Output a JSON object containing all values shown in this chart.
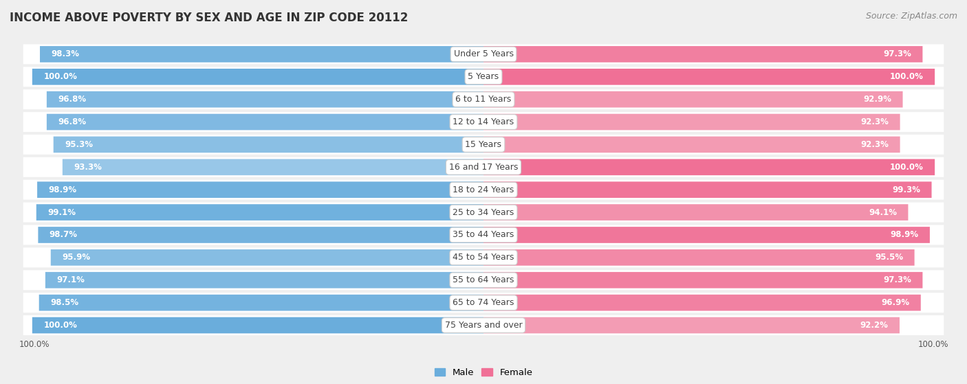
{
  "title": "INCOME ABOVE POVERTY BY SEX AND AGE IN ZIP CODE 20112",
  "source": "Source: ZipAtlas.com",
  "categories": [
    "Under 5 Years",
    "5 Years",
    "6 to 11 Years",
    "12 to 14 Years",
    "15 Years",
    "16 and 17 Years",
    "18 to 24 Years",
    "25 to 34 Years",
    "35 to 44 Years",
    "45 to 54 Years",
    "55 to 64 Years",
    "65 to 74 Years",
    "75 Years and over"
  ],
  "male_values": [
    98.3,
    100.0,
    96.8,
    96.8,
    95.3,
    93.3,
    98.9,
    99.1,
    98.7,
    95.9,
    97.1,
    98.5,
    100.0
  ],
  "female_values": [
    97.3,
    100.0,
    92.9,
    92.3,
    92.3,
    100.0,
    99.3,
    94.1,
    98.9,
    95.5,
    97.3,
    96.9,
    92.2
  ],
  "male_color": "#6aaddc",
  "female_color": "#f07096",
  "male_color_light": "#aed4ee",
  "female_color_light": "#f4a8bc",
  "male_label": "Male",
  "female_label": "Female",
  "bar_height": 0.72,
  "bg_color": "#efefef",
  "title_fontsize": 12,
  "label_fontsize": 9,
  "source_fontsize": 9,
  "value_fontsize": 8.5,
  "bottom_label": "100.0%"
}
